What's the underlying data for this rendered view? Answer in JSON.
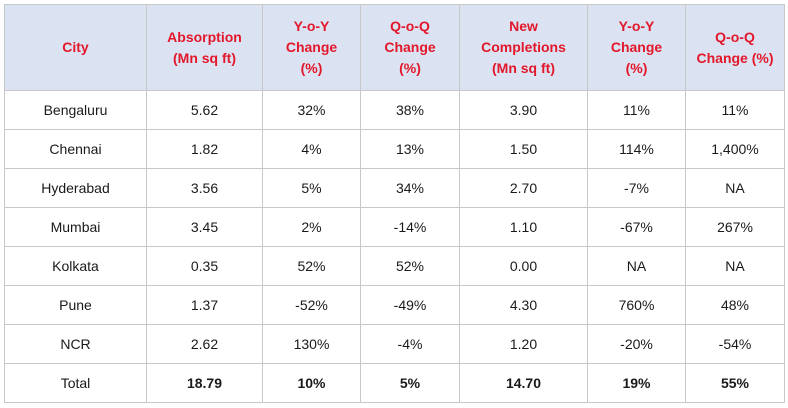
{
  "headers": [
    [
      "City"
    ],
    [
      "Absorption",
      "(Mn sq ft)"
    ],
    [
      "Y-o-Y",
      "Change",
      "(%)"
    ],
    [
      "Q-o-Q",
      "Change",
      "(%)"
    ],
    [
      "New",
      "Completions",
      "(Mn sq ft)"
    ],
    [
      "Y-o-Y",
      "Change",
      "(%)"
    ],
    [
      "Q-o-Q",
      "Change (%)"
    ]
  ],
  "rows": [
    [
      "Bengaluru",
      "5.62",
      "32%",
      "38%",
      "3.90",
      "11%",
      "11%"
    ],
    [
      "Chennai",
      "1.82",
      "4%",
      "13%",
      "1.50",
      "114%",
      "1,400%"
    ],
    [
      "Hyderabad",
      "3.56",
      "5%",
      "34%",
      "2.70",
      "-7%",
      "NA"
    ],
    [
      "Mumbai",
      "3.45",
      "2%",
      "-14%",
      "1.10",
      "-67%",
      "267%"
    ],
    [
      "Kolkata",
      "0.35",
      "52%",
      "52%",
      "0.00",
      "NA",
      "NA"
    ],
    [
      "Pune",
      "1.37",
      "-52%",
      "-49%",
      "4.30",
      "760%",
      "48%"
    ],
    [
      "NCR",
      "2.62",
      "130%",
      "-4%",
      "1.20",
      "-20%",
      "-54%"
    ]
  ],
  "total": [
    "Total",
    "18.79",
    "10%",
    "5%",
    "14.70",
    "19%",
    "55%"
  ],
  "colors": {
    "header_bg": "#dbe3f3",
    "header_text": "#e3172a",
    "border": "#c8c8c8"
  }
}
